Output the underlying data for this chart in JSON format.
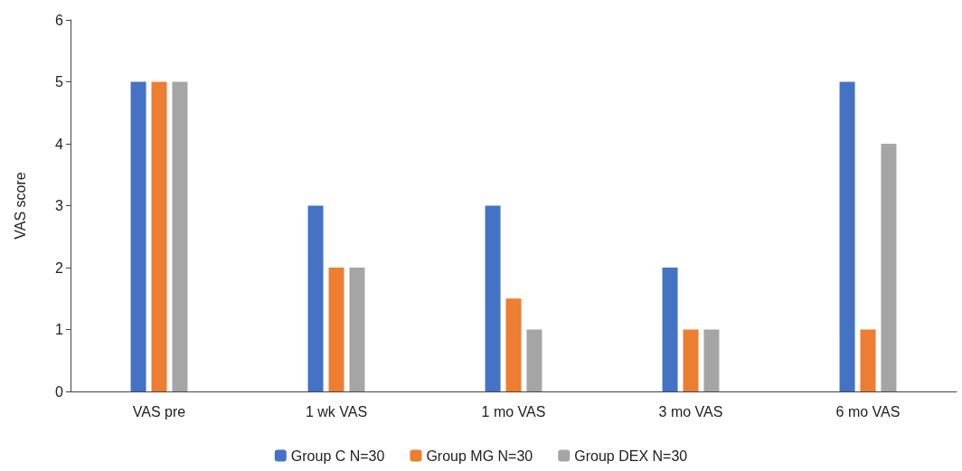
{
  "chart_data": {
    "type": "bar",
    "ylabel": "VAS score",
    "categories": [
      "VAS pre",
      "1 wk VAS",
      "1 mo VAS",
      "3 mo VAS",
      "6 mo VAS"
    ],
    "series": [
      {
        "name": "Group C N=30",
        "color": "#4472c4",
        "values": [
          5,
          3,
          3,
          2,
          5
        ]
      },
      {
        "name": "Group MG N=30",
        "color": "#ed7d31",
        "values": [
          5,
          2,
          1.5,
          1,
          1
        ]
      },
      {
        "name": "Group DEX N=30",
        "color": "#a5a5a5",
        "values": [
          5,
          2,
          1,
          1,
          4
        ]
      }
    ],
    "ylim": [
      0,
      6
    ],
    "yticks": [
      0,
      1,
      2,
      3,
      4,
      5,
      6
    ],
    "grid": false,
    "legend": "bottom"
  }
}
